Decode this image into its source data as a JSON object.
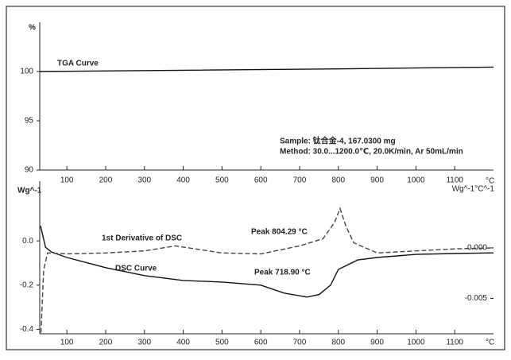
{
  "chart_data": [
    {
      "type": "line",
      "ylabel": "%",
      "xlabel": "°C",
      "xlim": [
        30,
        1200
      ],
      "xticks": [
        100,
        200,
        300,
        400,
        500,
        600,
        700,
        800,
        900,
        1000,
        1100
      ],
      "ylim": [
        90,
        105
      ],
      "yticks": [
        90,
        95,
        100
      ],
      "annotations": [
        "Sample: 钛合金-4, 167.0300 mg",
        "Method: 30.0...1200.0℃, 20.0K/min, Ar 50mL/min"
      ],
      "series": [
        {
          "name": "TGA Curve",
          "color": "#111111",
          "style": "solid",
          "x": [
            30,
            400,
            800,
            1200
          ],
          "values": [
            100,
            100.13,
            100.27,
            100.45
          ]
        }
      ]
    },
    {
      "type": "line",
      "ylabel": "Wg^-1",
      "y2label": "Wg^-1°C^-1",
      "xlabel": "°C",
      "xlim": [
        30,
        1200
      ],
      "xticks": [
        100,
        200,
        300,
        400,
        500,
        600,
        700,
        800,
        900,
        1000,
        1100
      ],
      "ylim": [
        -0.42,
        0.27
      ],
      "yticks": [
        {
          "value": 0,
          "label": "0.0"
        },
        -0.2,
        -0.4
      ],
      "y2lim": [
        -0.0085,
        0.0066
      ],
      "y2ticks": [
        {
          "value": 0,
          "label": "0.000"
        },
        -0.005
      ],
      "annotations": [
        "Peak  804.29 °C",
        "Peak  718.90 °C"
      ],
      "series": [
        {
          "name": "DSC Curve",
          "color": "#111111",
          "style": "solid",
          "x": [
            32,
            45,
            60,
            100,
            200,
            300,
            400,
            500,
            600,
            660,
            718.9,
            750,
            780,
            800,
            850,
            900,
            1000,
            1100,
            1200
          ],
          "values": [
            0.068,
            -0.029,
            -0.05,
            -0.075,
            -0.121,
            -0.157,
            -0.179,
            -0.186,
            -0.2,
            -0.236,
            -0.254,
            -0.243,
            -0.2,
            -0.129,
            -0.086,
            -0.075,
            -0.061,
            -0.057,
            -0.054
          ]
        },
        {
          "name": "1st Derivative of DSC",
          "color": "#444444",
          "style": "dashed",
          "axis": "y2",
          "x": [
            33,
            36,
            40,
            50,
            100,
            200,
            300,
            380,
            500,
            600,
            700,
            760,
            790,
            804.29,
            820,
            840,
            900,
            1000,
            1100,
            1200
          ],
          "values": [
            -0.0084,
            -0.006,
            -0.0022,
            -0.0005,
            -0.0006,
            -0.0005,
            -0.0003,
            0.0002,
            -0.0005,
            -0.0006,
            0.0002,
            0.0009,
            0.0025,
            0.0039,
            0.0021,
            0.0005,
            -0.0005,
            -0.0003,
            -0.0001,
            0
          ]
        }
      ]
    }
  ]
}
